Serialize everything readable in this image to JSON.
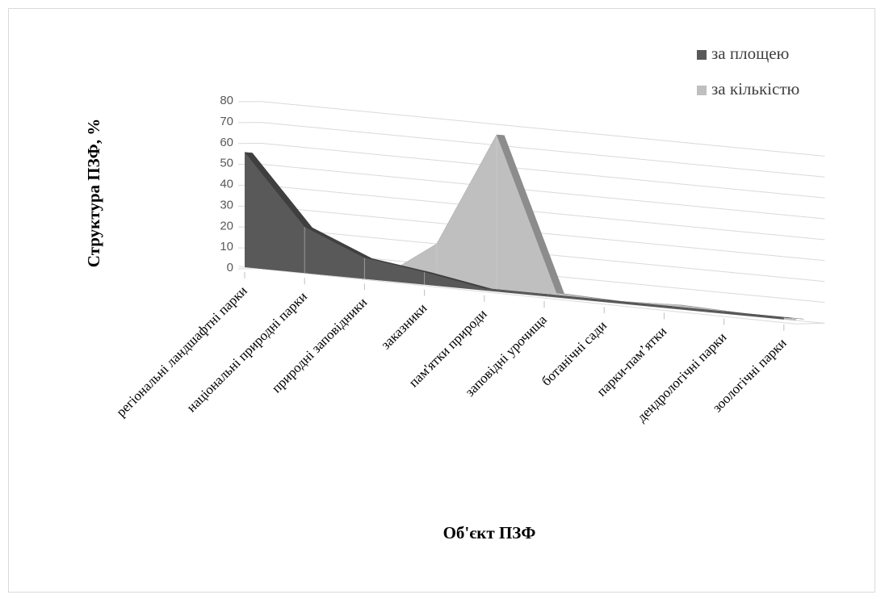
{
  "chart_data": {
    "type": "area",
    "view": "3d",
    "title": "",
    "xlabel": "Об'єкт ПЗФ",
    "ylabel": "Структура ПЗФ, %",
    "ylim": [
      0,
      80
    ],
    "yticks": [
      "0",
      "10",
      "20",
      "30",
      "40",
      "50",
      "60",
      "70",
      "80"
    ],
    "grid": true,
    "legend_position": "top-right",
    "categories": [
      "регіональні ландшафтні парки",
      "національні природні парки",
      "природні заповідники",
      "заказники",
      "пам'ятки природи",
      "заповідні урочища",
      "ботанічні сади",
      "парки-пам’ятки",
      "дендрологічні парки",
      "зоологічні парки"
    ],
    "series": [
      {
        "name": "за площею",
        "color": "#595959",
        "values": [
          55,
          22,
          10,
          6,
          1,
          1,
          1,
          1,
          1,
          1
        ]
      },
      {
        "name": "за кількістю",
        "color": "#bfbfbf",
        "values": [
          0,
          0,
          0,
          20,
          75,
          2,
          1,
          2,
          1,
          1
        ]
      }
    ]
  }
}
